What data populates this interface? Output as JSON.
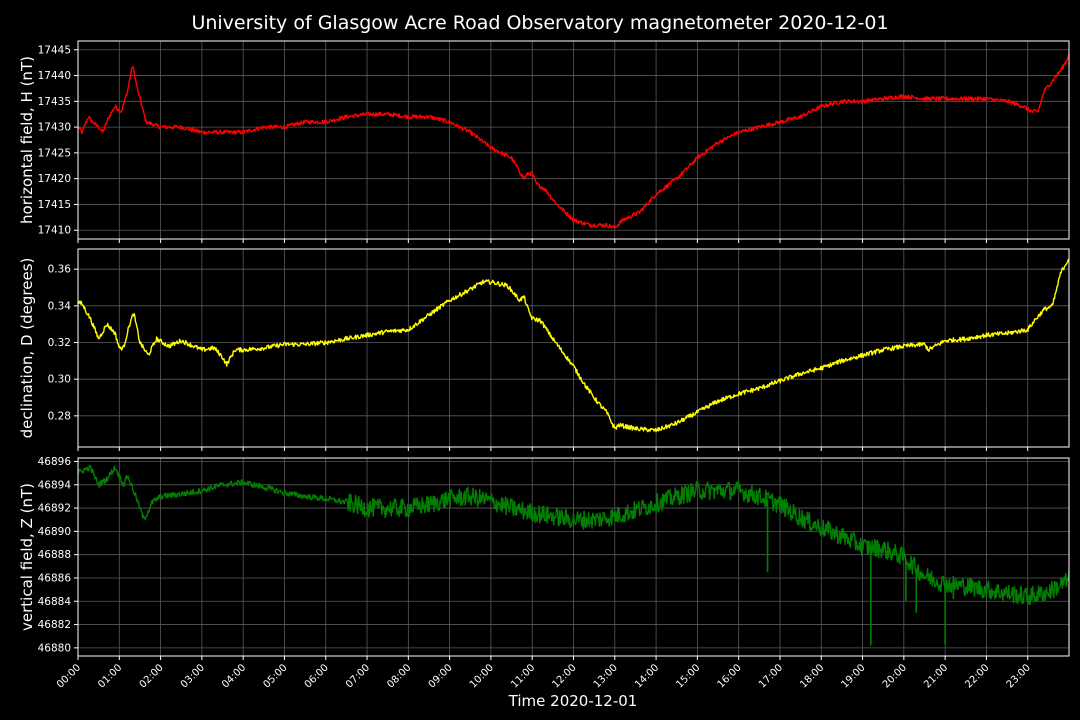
{
  "colors": {
    "background": "#000000",
    "text": "#ffffff",
    "grid": "#5a5a5a",
    "series_H": "#ff0000",
    "series_D": "#ffff00",
    "series_Z": "#008000"
  },
  "chart_data": {
    "type": "line",
    "title": "University of Glasgow Acre Road Observatory magnetometer 2020-12-01",
    "xlabel": "Time 2020-12-01",
    "x_ticks": [
      "00:00",
      "01:00",
      "02:00",
      "03:00",
      "04:00",
      "05:00",
      "06:00",
      "07:00",
      "08:00",
      "09:00",
      "10:00",
      "11:00",
      "12:00",
      "13:00",
      "14:00",
      "15:00",
      "16:00",
      "17:00",
      "18:00",
      "19:00",
      "20:00",
      "21:00",
      "22:00",
      "23:00"
    ],
    "x_range_hours": [
      0,
      24
    ],
    "grid": true,
    "panels": [
      {
        "ylabel": "horizontal field, H (nT)",
        "ylim": [
          17408.3,
          17446.7
        ],
        "yticks": [
          "17410",
          "17415",
          "17420",
          "17425",
          "17430",
          "17435",
          "17440",
          "17445"
        ],
        "ytick_values": [
          17410,
          17415,
          17420,
          17425,
          17430,
          17435,
          17440,
          17445
        ],
        "series": [
          {
            "noise": 0.4,
            "x": [
              0.0,
              0.1,
              0.25,
              0.35,
              0.5,
              0.6,
              0.75,
              0.9,
              1.05,
              1.2,
              1.32,
              1.45,
              1.65,
              2.0,
              2.5,
              3.0,
              3.5,
              4.0,
              4.5,
              5.0,
              5.5,
              6.0,
              6.5,
              7.0,
              7.5,
              8.0,
              8.5,
              9.0,
              9.5,
              10.0,
              10.5,
              10.8,
              10.9,
              11.0,
              11.1,
              11.3,
              11.6,
              12.0,
              12.4,
              12.8,
              13.0,
              13.2,
              13.6,
              14.0,
              14.5,
              15.0,
              15.5,
              16.0,
              16.5,
              17.0,
              17.5,
              18.0,
              18.5,
              19.0,
              19.5,
              20.0,
              20.5,
              21.0,
              21.5,
              22.0,
              22.5,
              22.9,
              23.1,
              23.25,
              23.4,
              23.6,
              23.8,
              23.95,
              24.0
            ],
            "y": [
              17430,
              17429,
              17432,
              17431,
              17430,
              17429,
              17432,
              17434,
              17433,
              17437,
              17442,
              17437,
              17431,
              17430,
              17430,
              17429,
              17429,
              17429,
              17430,
              17430,
              17431,
              17431,
              17432,
              17432.5,
              17432.5,
              17432,
              17432,
              17431,
              17429,
              17426,
              17424,
              17420,
              17421,
              17421,
              17419,
              17418,
              17415,
              17412,
              17411,
              17411,
              17410.5,
              17412,
              17413.5,
              17417,
              17420,
              17424,
              17427,
              17429,
              17430,
              17431,
              17432,
              17434,
              17435,
              17435,
              17435.5,
              17436,
              17435.5,
              17435.5,
              17435.5,
              17435.5,
              17435,
              17434,
              17433,
              17433,
              17437,
              17439,
              17441,
              17443,
              17444.5
            ]
          }
        ]
      },
      {
        "ylabel": "declination, D (degrees)",
        "ylim": [
          0.263,
          0.371
        ],
        "yticks": [
          "0.28",
          "0.30",
          "0.32",
          "0.34",
          "0.36"
        ],
        "ytick_values": [
          0.28,
          0.3,
          0.32,
          0.34,
          0.36
        ],
        "series": [
          {
            "noise": 0.0012,
            "x": [
              0.0,
              0.1,
              0.3,
              0.5,
              0.7,
              0.9,
              1.0,
              1.1,
              1.25,
              1.35,
              1.5,
              1.7,
              1.9,
              2.2,
              2.5,
              3.0,
              3.3,
              3.5,
              3.6,
              3.8,
              4.0,
              4.5,
              5.0,
              5.5,
              6.0,
              6.5,
              7.0,
              7.5,
              8.0,
              8.5,
              9.0,
              9.5,
              9.8,
              10.0,
              10.4,
              10.7,
              10.8,
              10.9,
              11.0,
              11.2,
              11.5,
              12.0,
              12.3,
              12.6,
              12.8,
              13.0,
              13.1,
              13.5,
              14.0,
              14.5,
              15.0,
              15.5,
              16.0,
              16.5,
              17.0,
              17.5,
              18.0,
              18.5,
              19.0,
              19.5,
              20.0,
              20.5,
              20.6,
              21.0,
              21.5,
              22.0,
              22.5,
              23.0,
              23.2,
              23.4,
              23.6,
              23.8,
              24.0
            ],
            "y": [
              0.342,
              0.341,
              0.333,
              0.322,
              0.33,
              0.325,
              0.317,
              0.317,
              0.33,
              0.336,
              0.32,
              0.313,
              0.322,
              0.318,
              0.321,
              0.316,
              0.317,
              0.312,
              0.308,
              0.316,
              0.316,
              0.317,
              0.319,
              0.319,
              0.32,
              0.322,
              0.324,
              0.326,
              0.327,
              0.335,
              0.343,
              0.349,
              0.353,
              0.353,
              0.351,
              0.343,
              0.345,
              0.338,
              0.333,
              0.332,
              0.322,
              0.307,
              0.296,
              0.287,
              0.282,
              0.273,
              0.275,
              0.273,
              0.272,
              0.276,
              0.282,
              0.288,
              0.292,
              0.295,
              0.299,
              0.303,
              0.306,
              0.31,
              0.313,
              0.316,
              0.318,
              0.319,
              0.316,
              0.321,
              0.322,
              0.324,
              0.325,
              0.327,
              0.333,
              0.338,
              0.34,
              0.358,
              0.366
            ]
          }
        ]
      },
      {
        "ylabel": "vertical field, Z (nT)",
        "ylim": [
          46879.3,
          46896.3
        ],
        "yticks": [
          "46880",
          "46882",
          "46884",
          "46886",
          "46888",
          "46890",
          "46892",
          "46894",
          "46896"
        ],
        "ytick_values": [
          46880,
          46882,
          46884,
          46886,
          46888,
          46890,
          46892,
          46894,
          46896
        ],
        "series": [
          {
            "noise": 0.25,
            "noise_extra": [
              {
                "from": 6.5,
                "to": 24.0,
                "amp": 0.8
              }
            ],
            "x": [
              0.0,
              0.1,
              0.3,
              0.5,
              0.7,
              0.9,
              1.1,
              1.2,
              1.4,
              1.6,
              1.8,
              2.0,
              2.5,
              3.0,
              3.5,
              4.0,
              4.5,
              5.0,
              5.5,
              6.0,
              6.5,
              7.0,
              7.5,
              8.0,
              8.5,
              9.0,
              9.5,
              10.0,
              10.5,
              11.0,
              11.5,
              12.0,
              12.5,
              13.0,
              13.5,
              14.0,
              14.5,
              15.0,
              15.5,
              16.0,
              16.5,
              17.0,
              17.5,
              18.0,
              18.5,
              19.0,
              19.5,
              20.0,
              20.5,
              21.0,
              21.5,
              22.0,
              22.5,
              23.0,
              23.5,
              24.0
            ],
            "y": [
              46895,
              46895.2,
              46895.5,
              46894,
              46894.5,
              46895.5,
              46894,
              46894.8,
              46893,
              46891,
              46892.5,
              46893,
              46893.2,
              46893.5,
              46894,
              46894.2,
              46893.8,
              46893.3,
              46893,
              46892.8,
              46892.5,
              46892,
              46892,
              46892,
              46892.3,
              46892.8,
              46893,
              46892.6,
              46892,
              46891.6,
              46891.3,
              46891,
              46891,
              46891.3,
              46891.8,
              46892.4,
              46893,
              46893.5,
              46893.5,
              46893.5,
              46893,
              46892.3,
              46891.2,
              46890.3,
              46889.6,
              46888.7,
              46888.5,
              46887.8,
              46886.2,
              46885.5,
              46885.3,
              46885,
              46884.7,
              46884.4,
              46884.8,
              46885.8
            ]
          }
        ],
        "spikes": [
          {
            "x": 16.7,
            "y": 46886.5
          },
          {
            "x": 19.2,
            "y": 46880.2
          },
          {
            "x": 20.05,
            "y": 46884.0
          },
          {
            "x": 20.3,
            "y": 46883.0
          },
          {
            "x": 21.0,
            "y": 46880.3
          },
          {
            "x": 21.2,
            "y": 46884.2
          }
        ]
      }
    ]
  }
}
